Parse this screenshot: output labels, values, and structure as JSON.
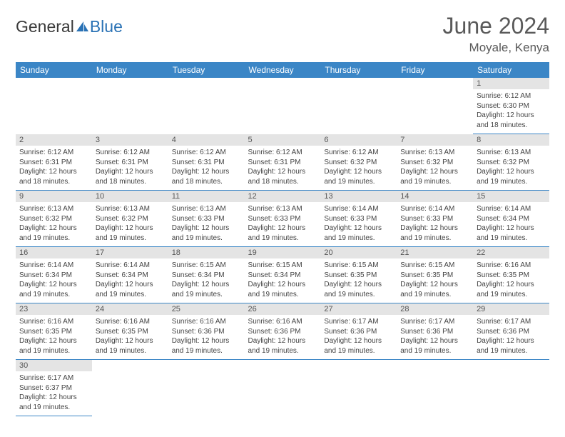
{
  "brand": {
    "name1": "General",
    "name2": "Blue",
    "color1": "#3a3a3a",
    "color2": "#2a72b5",
    "icon_color": "#2a72b5"
  },
  "header": {
    "title": "June 2024",
    "location": "Moyale, Kenya"
  },
  "colors": {
    "header_bg": "#3b86c6",
    "header_text": "#ffffff",
    "daynum_bg": "#e4e4e4",
    "daynum_text": "#555555",
    "cell_border": "#3b86c6",
    "body_text": "#444444"
  },
  "weekdays": [
    "Sunday",
    "Monday",
    "Tuesday",
    "Wednesday",
    "Thursday",
    "Friday",
    "Saturday"
  ],
  "calendar": {
    "first_weekday_index": 6,
    "num_days": 30
  },
  "labels": {
    "sunrise": "Sunrise:",
    "sunset": "Sunset:",
    "daylight": "Daylight:",
    "hours": "hours",
    "and": "and",
    "minutes": "minutes."
  },
  "days": {
    "1": {
      "sunrise": "6:12 AM",
      "sunset": "6:30 PM",
      "daylight_h": 12,
      "daylight_m": 18
    },
    "2": {
      "sunrise": "6:12 AM",
      "sunset": "6:31 PM",
      "daylight_h": 12,
      "daylight_m": 18
    },
    "3": {
      "sunrise": "6:12 AM",
      "sunset": "6:31 PM",
      "daylight_h": 12,
      "daylight_m": 18
    },
    "4": {
      "sunrise": "6:12 AM",
      "sunset": "6:31 PM",
      "daylight_h": 12,
      "daylight_m": 18
    },
    "5": {
      "sunrise": "6:12 AM",
      "sunset": "6:31 PM",
      "daylight_h": 12,
      "daylight_m": 18
    },
    "6": {
      "sunrise": "6:12 AM",
      "sunset": "6:32 PM",
      "daylight_h": 12,
      "daylight_m": 19
    },
    "7": {
      "sunrise": "6:13 AM",
      "sunset": "6:32 PM",
      "daylight_h": 12,
      "daylight_m": 19
    },
    "8": {
      "sunrise": "6:13 AM",
      "sunset": "6:32 PM",
      "daylight_h": 12,
      "daylight_m": 19
    },
    "9": {
      "sunrise": "6:13 AM",
      "sunset": "6:32 PM",
      "daylight_h": 12,
      "daylight_m": 19
    },
    "10": {
      "sunrise": "6:13 AM",
      "sunset": "6:32 PM",
      "daylight_h": 12,
      "daylight_m": 19
    },
    "11": {
      "sunrise": "6:13 AM",
      "sunset": "6:33 PM",
      "daylight_h": 12,
      "daylight_m": 19
    },
    "12": {
      "sunrise": "6:13 AM",
      "sunset": "6:33 PM",
      "daylight_h": 12,
      "daylight_m": 19
    },
    "13": {
      "sunrise": "6:14 AM",
      "sunset": "6:33 PM",
      "daylight_h": 12,
      "daylight_m": 19
    },
    "14": {
      "sunrise": "6:14 AM",
      "sunset": "6:33 PM",
      "daylight_h": 12,
      "daylight_m": 19
    },
    "15": {
      "sunrise": "6:14 AM",
      "sunset": "6:34 PM",
      "daylight_h": 12,
      "daylight_m": 19
    },
    "16": {
      "sunrise": "6:14 AM",
      "sunset": "6:34 PM",
      "daylight_h": 12,
      "daylight_m": 19
    },
    "17": {
      "sunrise": "6:14 AM",
      "sunset": "6:34 PM",
      "daylight_h": 12,
      "daylight_m": 19
    },
    "18": {
      "sunrise": "6:15 AM",
      "sunset": "6:34 PM",
      "daylight_h": 12,
      "daylight_m": 19
    },
    "19": {
      "sunrise": "6:15 AM",
      "sunset": "6:34 PM",
      "daylight_h": 12,
      "daylight_m": 19
    },
    "20": {
      "sunrise": "6:15 AM",
      "sunset": "6:35 PM",
      "daylight_h": 12,
      "daylight_m": 19
    },
    "21": {
      "sunrise": "6:15 AM",
      "sunset": "6:35 PM",
      "daylight_h": 12,
      "daylight_m": 19
    },
    "22": {
      "sunrise": "6:16 AM",
      "sunset": "6:35 PM",
      "daylight_h": 12,
      "daylight_m": 19
    },
    "23": {
      "sunrise": "6:16 AM",
      "sunset": "6:35 PM",
      "daylight_h": 12,
      "daylight_m": 19
    },
    "24": {
      "sunrise": "6:16 AM",
      "sunset": "6:35 PM",
      "daylight_h": 12,
      "daylight_m": 19
    },
    "25": {
      "sunrise": "6:16 AM",
      "sunset": "6:36 PM",
      "daylight_h": 12,
      "daylight_m": 19
    },
    "26": {
      "sunrise": "6:16 AM",
      "sunset": "6:36 PM",
      "daylight_h": 12,
      "daylight_m": 19
    },
    "27": {
      "sunrise": "6:17 AM",
      "sunset": "6:36 PM",
      "daylight_h": 12,
      "daylight_m": 19
    },
    "28": {
      "sunrise": "6:17 AM",
      "sunset": "6:36 PM",
      "daylight_h": 12,
      "daylight_m": 19
    },
    "29": {
      "sunrise": "6:17 AM",
      "sunset": "6:36 PM",
      "daylight_h": 12,
      "daylight_m": 19
    },
    "30": {
      "sunrise": "6:17 AM",
      "sunset": "6:37 PM",
      "daylight_h": 12,
      "daylight_m": 19
    }
  }
}
